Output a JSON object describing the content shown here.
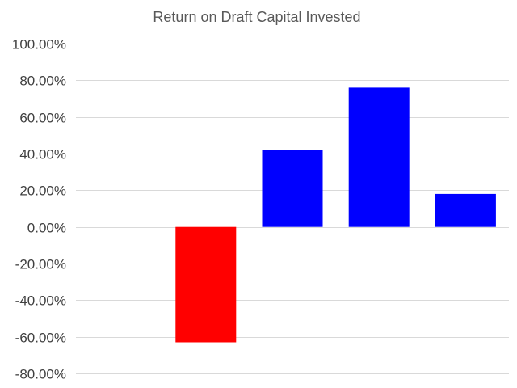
{
  "chart_data": {
    "type": "bar",
    "title": "Return on Draft Capital Invested",
    "xlabel": "",
    "ylabel": "",
    "categories": [
      "",
      "",
      "",
      "",
      ""
    ],
    "values": [
      null,
      -0.63,
      0.42,
      0.76,
      0.18
    ],
    "colors": [
      "#ff0000",
      "#ff0000",
      "#0000ff",
      "#0000ff",
      "#0000ff"
    ],
    "ylim": [
      -0.8,
      1.0
    ],
    "yticks": [
      1.0,
      0.8,
      0.6,
      0.4,
      0.2,
      0.0,
      -0.2,
      -0.4,
      -0.6,
      -0.8
    ],
    "ytick_labels": [
      "100.00%",
      "80.00%",
      "60.00%",
      "40.00%",
      "20.00%",
      "0.00%",
      "-20.00%",
      "-40.00%",
      "-60.00%",
      "-80.00%"
    ],
    "grid": true,
    "legend": "none"
  }
}
